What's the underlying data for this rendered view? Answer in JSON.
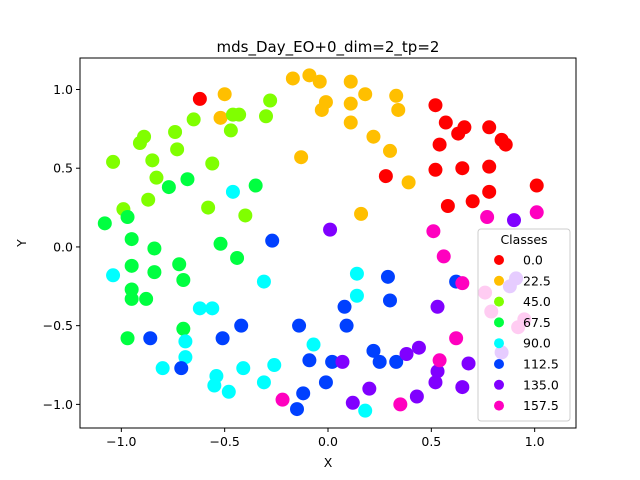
{
  "chart_data": {
    "type": "scatter",
    "title": "mds_Day_EO+0_dim=2_tp=2",
    "xlabel": "X",
    "ylabel": "Y",
    "xlim": [
      -1.2,
      1.2
    ],
    "ylim": [
      -1.15,
      1.2
    ],
    "xticks": [
      -1.0,
      -0.5,
      0.0,
      0.5,
      1.0
    ],
    "xtick_labels": [
      "−1.0",
      "−0.5",
      "0.0",
      "0.5",
      "1.0"
    ],
    "yticks": [
      -1.0,
      -0.5,
      0.0,
      0.5,
      1.0
    ],
    "ytick_labels": [
      "−1.0",
      "−0.5",
      "0.0",
      "0.5",
      "1.0"
    ],
    "grid": false,
    "legend": {
      "title": "Classes",
      "placement": "lower-right",
      "entries": [
        "0.0",
        "22.5",
        "45.0",
        "67.5",
        "90.0",
        "112.5",
        "135.0",
        "157.5"
      ]
    },
    "series": [
      {
        "name": "0.0",
        "color": "#ff0000",
        "points": [
          [
            -0.62,
            0.94
          ],
          [
            0.52,
            0.9
          ],
          [
            0.57,
            0.79
          ],
          [
            0.63,
            0.72
          ],
          [
            0.66,
            0.76
          ],
          [
            0.54,
            0.65
          ],
          [
            0.78,
            0.76
          ],
          [
            0.84,
            0.68
          ],
          [
            0.86,
            0.65
          ],
          [
            0.78,
            0.51
          ],
          [
            0.65,
            0.5
          ],
          [
            0.52,
            0.49
          ],
          [
            0.28,
            0.45
          ],
          [
            0.58,
            0.26
          ],
          [
            0.7,
            0.29
          ],
          [
            0.78,
            0.35
          ],
          [
            1.01,
            0.39
          ]
        ]
      },
      {
        "name": "22.5",
        "color": "#ffbf00",
        "points": [
          [
            -0.5,
            0.97
          ],
          [
            -0.52,
            0.82
          ],
          [
            -0.17,
            1.07
          ],
          [
            -0.09,
            1.09
          ],
          [
            -0.04,
            1.05
          ],
          [
            -0.01,
            0.92
          ],
          [
            -0.03,
            0.87
          ],
          [
            0.11,
            1.05
          ],
          [
            0.18,
            0.97
          ],
          [
            0.33,
            0.96
          ],
          [
            0.11,
            0.91
          ],
          [
            0.34,
            0.87
          ],
          [
            0.11,
            0.79
          ],
          [
            0.22,
            0.7
          ],
          [
            0.3,
            0.61
          ],
          [
            0.39,
            0.41
          ],
          [
            -0.13,
            0.57
          ],
          [
            0.16,
            0.21
          ]
        ]
      },
      {
        "name": "45.0",
        "color": "#80ff00",
        "points": [
          [
            -0.65,
            0.81
          ],
          [
            -0.46,
            0.84
          ],
          [
            -0.43,
            0.84
          ],
          [
            -0.3,
            0.83
          ],
          [
            -0.28,
            0.93
          ],
          [
            -0.47,
            0.74
          ],
          [
            -0.89,
            0.7
          ],
          [
            -0.91,
            0.66
          ],
          [
            -0.74,
            0.73
          ],
          [
            -0.73,
            0.62
          ],
          [
            -0.85,
            0.55
          ],
          [
            -0.56,
            0.53
          ],
          [
            -1.04,
            0.54
          ],
          [
            -0.83,
            0.44
          ],
          [
            -0.87,
            0.3
          ],
          [
            -0.99,
            0.24
          ],
          [
            -0.58,
            0.25
          ],
          [
            -0.4,
            0.2
          ]
        ]
      },
      {
        "name": "67.5",
        "color": "#00ff40",
        "points": [
          [
            -0.68,
            0.43
          ],
          [
            -0.77,
            0.38
          ],
          [
            -0.35,
            0.39
          ],
          [
            -1.08,
            0.15
          ],
          [
            -0.97,
            0.19
          ],
          [
            -0.95,
            0.05
          ],
          [
            -0.52,
            0.02
          ],
          [
            -0.84,
            -0.01
          ],
          [
            -0.44,
            -0.07
          ],
          [
            -0.95,
            -0.12
          ],
          [
            -0.72,
            -0.11
          ],
          [
            -0.84,
            -0.16
          ],
          [
            -0.7,
            -0.21
          ],
          [
            -0.95,
            -0.27
          ],
          [
            -0.95,
            -0.33
          ],
          [
            -0.88,
            -0.33
          ],
          [
            -0.7,
            -0.52
          ],
          [
            -0.97,
            -0.58
          ]
        ]
      },
      {
        "name": "90.0",
        "color": "#00ffff",
        "points": [
          [
            -0.46,
            0.35
          ],
          [
            -1.04,
            -0.18
          ],
          [
            -0.31,
            -0.22
          ],
          [
            -0.62,
            -0.39
          ],
          [
            -0.56,
            -0.39
          ],
          [
            -0.69,
            -0.6
          ],
          [
            -0.69,
            -0.7
          ],
          [
            -0.8,
            -0.77
          ],
          [
            -0.41,
            -0.77
          ],
          [
            -0.26,
            -0.75
          ],
          [
            -0.54,
            -0.82
          ],
          [
            -0.55,
            -0.88
          ],
          [
            -0.48,
            -0.92
          ],
          [
            -0.31,
            -0.86
          ],
          [
            -0.07,
            -0.62
          ],
          [
            0.14,
            -0.17
          ],
          [
            0.14,
            -0.31
          ],
          [
            0.18,
            -1.04
          ]
        ]
      },
      {
        "name": "112.5",
        "color": "#0040ff",
        "points": [
          [
            -0.27,
            0.04
          ],
          [
            -0.42,
            -0.5
          ],
          [
            -0.51,
            -0.58
          ],
          [
            -0.86,
            -0.58
          ],
          [
            -0.71,
            -0.77
          ],
          [
            -0.14,
            -0.5
          ],
          [
            -0.09,
            -0.72
          ],
          [
            0.02,
            -0.73
          ],
          [
            -0.01,
            -0.86
          ],
          [
            0.08,
            -0.38
          ],
          [
            0.09,
            -0.5
          ],
          [
            0.29,
            -0.19
          ],
          [
            0.3,
            -0.34
          ],
          [
            0.22,
            -0.66
          ],
          [
            0.25,
            -0.73
          ],
          [
            0.33,
            -0.73
          ],
          [
            -0.12,
            -0.93
          ],
          [
            -0.15,
            -1.03
          ],
          [
            0.62,
            -0.22
          ]
        ]
      },
      {
        "name": "135.0",
        "color": "#8000ff",
        "points": [
          [
            0.01,
            0.11
          ],
          [
            0.9,
            0.17
          ],
          [
            0.91,
            -0.2
          ],
          [
            0.88,
            -0.25
          ],
          [
            0.53,
            -0.38
          ],
          [
            0.38,
            -0.68
          ],
          [
            0.44,
            -0.64
          ],
          [
            0.52,
            -0.86
          ],
          [
            0.53,
            -0.79
          ],
          [
            0.65,
            -0.89
          ],
          [
            0.68,
            -0.74
          ],
          [
            0.84,
            -0.67
          ],
          [
            0.07,
            -0.73
          ],
          [
            0.2,
            -0.9
          ],
          [
            0.12,
            -0.99
          ],
          [
            0.43,
            -0.95
          ]
        ]
      },
      {
        "name": "157.5",
        "color": "#ff00bf",
        "points": [
          [
            -0.22,
            -0.97
          ],
          [
            0.51,
            0.1
          ],
          [
            0.56,
            -0.06
          ],
          [
            0.77,
            0.19
          ],
          [
            1.01,
            0.22
          ],
          [
            0.65,
            -0.23
          ],
          [
            0.76,
            -0.29
          ],
          [
            0.62,
            -0.58
          ],
          [
            0.54,
            -0.72
          ],
          [
            0.35,
            -1.0
          ],
          [
            0.92,
            -0.51
          ],
          [
            0.95,
            -0.46
          ],
          [
            0.79,
            -0.41
          ]
        ]
      }
    ]
  }
}
